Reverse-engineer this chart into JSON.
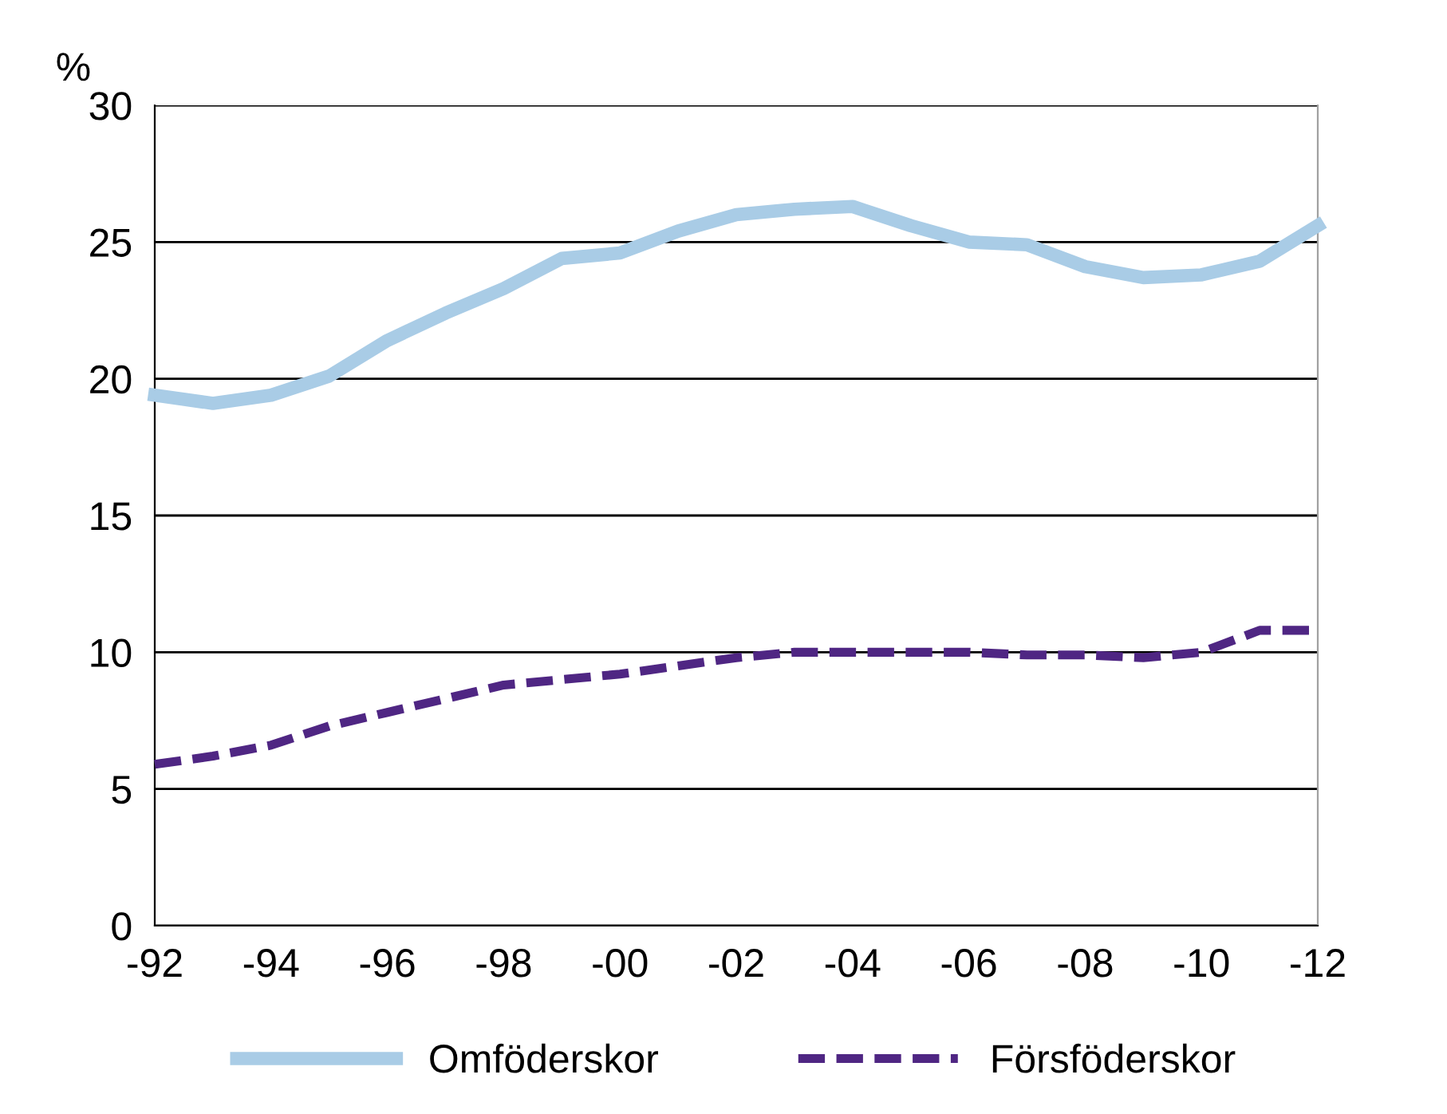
{
  "chart_data": {
    "type": "line",
    "ylabel": "%",
    "categories": [
      "-92",
      null,
      "-94",
      null,
      "-96",
      null,
      "-98",
      null,
      "-00",
      null,
      "-02",
      null,
      "-04",
      null,
      "-06",
      null,
      "-08",
      null,
      "-10",
      null,
      "-12"
    ],
    "series": [
      {
        "name": "Omföderskor",
        "color": "#a9cce6",
        "line_style": "solid",
        "values": [
          19.4,
          19.1,
          19.4,
          20.1,
          21.4,
          22.4,
          23.3,
          24.4,
          24.6,
          25.4,
          26.0,
          26.2,
          26.3,
          25.6,
          25.0,
          24.9,
          24.1,
          23.7,
          23.8,
          24.3,
          25.6
        ]
      },
      {
        "name": "Försföderskor",
        "color": "#4f2683",
        "line_style": "dashed",
        "values": [
          5.9,
          6.2,
          6.6,
          7.3,
          7.8,
          8.3,
          8.8,
          9.0,
          9.2,
          9.5,
          9.8,
          10.0,
          10.0,
          10.0,
          10.0,
          9.9,
          9.9,
          9.8,
          10.0,
          10.8,
          10.8
        ]
      }
    ],
    "ylim": [
      0,
      30
    ],
    "yticks": [
      0,
      5,
      10,
      15,
      20,
      25,
      30
    ],
    "grid": "y",
    "legend": "bottom",
    "marker": "none"
  }
}
